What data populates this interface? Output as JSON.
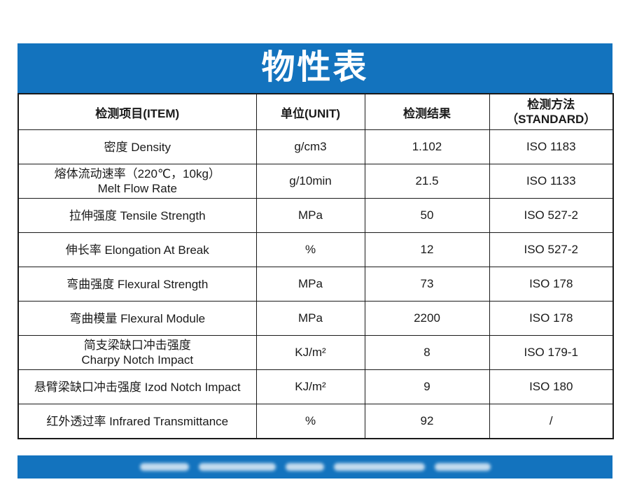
{
  "page": {
    "title": "物性表",
    "accent_color": "#1373BE"
  },
  "table": {
    "header": {
      "item": "检测项目(ITEM)",
      "unit": "单位(UNIT)",
      "result": "检测结果",
      "standard_line1": "检测方法",
      "standard_line2": "（STANDARD）"
    },
    "rows": [
      {
        "item_line1": "密度 Density",
        "unit": "g/cm3",
        "result": "1.102",
        "standard": "ISO 1183"
      },
      {
        "item_line1": "熔体流动速率（220℃，10kg）",
        "item_line2": "Melt Flow  Rate",
        "unit": "g/10min",
        "result": "21.5",
        "standard": "ISO 1133"
      },
      {
        "item_line1": "拉伸强度 Tensile Strength",
        "unit": "MPa",
        "result": "50",
        "standard": "ISO 527-2"
      },
      {
        "item_line1": "伸长率 Elongation At Break",
        "unit": "%",
        "result": "12",
        "standard": "ISO 527-2"
      },
      {
        "item_line1": "弯曲强度 Flexural Strength",
        "unit": "MPa",
        "result": "73",
        "standard": "ISO 178"
      },
      {
        "item_line1": "弯曲模量 Flexural Module",
        "unit": "MPa",
        "result": "2200",
        "standard": "ISO 178"
      },
      {
        "item_line1": "简支梁缺口冲击强度",
        "item_line2": "Charpy Notch Impact",
        "unit": "KJ/m²",
        "result": "8",
        "standard": "ISO 179-1"
      },
      {
        "item_line1": "悬臂梁缺口冲击强度 Izod Notch Impact",
        "unit": "KJ/m²",
        "result": "9",
        "standard": "ISO 180"
      },
      {
        "item_line1": "红外透过率 Infrared Transmittance",
        "unit": "%",
        "result": "92",
        "standard": "/"
      }
    ]
  }
}
